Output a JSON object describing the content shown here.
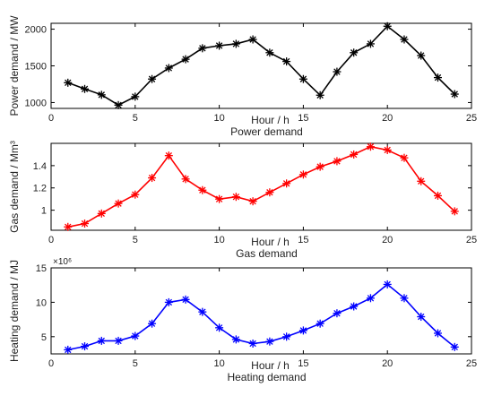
{
  "chart_data": [
    {
      "type": "line",
      "xlabel": "Hour / h",
      "ylabel": "Power demand / MW",
      "caption": "Power demand",
      "xlim": [
        0,
        25
      ],
      "ylim": [
        920,
        2080
      ],
      "xticks": [
        "0",
        "5",
        "10",
        "15",
        "20",
        "25"
      ],
      "yticks": [
        "1000",
        "1500",
        "2000"
      ],
      "ytick_values": [
        1000,
        1500,
        2000
      ],
      "exponent": "",
      "marker": "asterisk",
      "color": "#000000",
      "x": [
        1,
        2,
        3,
        4,
        5,
        6,
        7,
        8,
        9,
        10,
        11,
        12,
        13,
        14,
        15,
        16,
        17,
        18,
        19,
        20,
        21,
        22,
        23,
        24
      ],
      "y": [
        1270,
        1185,
        1105,
        965,
        1080,
        1320,
        1470,
        1590,
        1740,
        1775,
        1800,
        1860,
        1680,
        1560,
        1320,
        1100,
        1420,
        1680,
        1800,
        2040,
        1860,
        1640,
        1340,
        1115
      ]
    },
    {
      "type": "line",
      "xlabel": "Hour / h",
      "ylabel": "Gas demand / Mm³",
      "caption": "Gas demand",
      "xlim": [
        0,
        25
      ],
      "ylim": [
        0.82,
        1.6
      ],
      "xticks": [
        "0",
        "5",
        "10",
        "15",
        "20",
        "25"
      ],
      "yticks": [
        "1",
        "1.2",
        "1.4"
      ],
      "ytick_values": [
        1.0,
        1.2,
        1.4
      ],
      "exponent": "",
      "marker": "asterisk",
      "color": "#ff0000",
      "x": [
        1,
        2,
        3,
        4,
        5,
        6,
        7,
        8,
        9,
        10,
        11,
        12,
        13,
        14,
        15,
        16,
        17,
        18,
        19,
        20,
        21,
        22,
        23,
        24
      ],
      "y": [
        0.85,
        0.88,
        0.97,
        1.06,
        1.14,
        1.29,
        1.49,
        1.28,
        1.18,
        1.1,
        1.12,
        1.08,
        1.16,
        1.24,
        1.32,
        1.39,
        1.44,
        1.5,
        1.57,
        1.54,
        1.47,
        1.26,
        1.13,
        0.99
      ]
    },
    {
      "type": "line",
      "xlabel": "Hour / h",
      "ylabel": "Heating demand / MJ",
      "caption": "Heating demand",
      "xlim": [
        0,
        25
      ],
      "ylim": [
        2.5,
        15
      ],
      "xticks": [
        "0",
        "5",
        "10",
        "15",
        "20",
        "25"
      ],
      "yticks": [
        "5",
        "10",
        "15"
      ],
      "ytick_values": [
        5,
        10,
        15
      ],
      "exponent": "×10⁶",
      "marker": "asterisk",
      "color": "#0000ff",
      "x": [
        1,
        2,
        3,
        4,
        5,
        6,
        7,
        8,
        9,
        10,
        11,
        12,
        13,
        14,
        15,
        16,
        17,
        18,
        19,
        20,
        21,
        22,
        23,
        24
      ],
      "y": [
        3.1,
        3.6,
        4.4,
        4.4,
        5.1,
        6.9,
        10.0,
        10.4,
        8.6,
        6.3,
        4.6,
        4.0,
        4.3,
        5.0,
        5.9,
        6.9,
        8.4,
        9.4,
        10.6,
        12.6,
        10.6,
        7.9,
        5.5,
        3.5
      ]
    }
  ]
}
